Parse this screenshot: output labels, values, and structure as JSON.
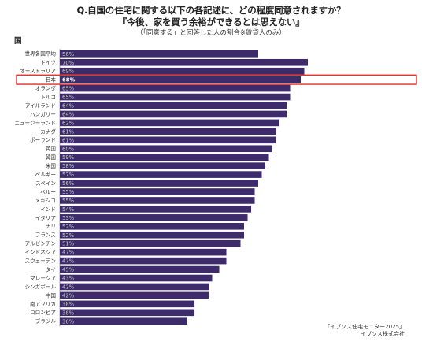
{
  "header": {
    "title": "Q.自国の住宅に関する以下の各記述に、どの程度同意されますか？",
    "subtitle": "『今後、家を買う余裕ができるとは思えない』",
    "note": "（「同意する」と回答した人の割合※賃貸人のみ）"
  },
  "axis_title": "国",
  "source": {
    "line1": "「イプソス住宅モニター2025」",
    "line2": "イプソス株式会社"
  },
  "colors": {
    "bar": "#3d2b6b",
    "highlight": "#e0201b",
    "label": "#c8c8c8"
  },
  "chart_data": {
    "type": "bar",
    "orientation": "horizontal",
    "categories": [
      "世界各国平均",
      "ドイツ",
      "オーストラリア",
      "日本",
      "オランダ",
      "トルコ",
      "アイルランド",
      "ハンガリー",
      "ニュージーランド",
      "カナダ",
      "ポーランド",
      "英国",
      "韓国",
      "米国",
      "ベルギー",
      "スペイン",
      "ペルー",
      "メキシコ",
      "インド",
      "イタリア",
      "チリ",
      "フランス",
      "アルゼンチン",
      "インドネシア",
      "スウェーデン",
      "タイ",
      "マレーシア",
      "シンガポール",
      "中国",
      "南アフリカ",
      "コロンビア",
      "ブラジル"
    ],
    "values": [
      56,
      70,
      69,
      68,
      65,
      65,
      64,
      64,
      62,
      61,
      61,
      60,
      59,
      58,
      57,
      56,
      55,
      55,
      54,
      53,
      52,
      52,
      51,
      47,
      47,
      45,
      43,
      42,
      42,
      38,
      38,
      36
    ],
    "data_labels": [
      "56%",
      "70%",
      "69%",
      "68%",
      "65%",
      "65%",
      "64%",
      "64%",
      "62%",
      "61%",
      "61%",
      "60%",
      "59%",
      "58%",
      "57%",
      "56%",
      "55%",
      "55%",
      "54%",
      "53%",
      "52%",
      "52%",
      "51%",
      "47%",
      "47%",
      "45%",
      "43%",
      "42%",
      "42%",
      "38%",
      "38%",
      "36%"
    ],
    "highlight_category": "日本",
    "xlim": [
      0,
      100
    ],
    "grid": false,
    "legend": "none"
  }
}
